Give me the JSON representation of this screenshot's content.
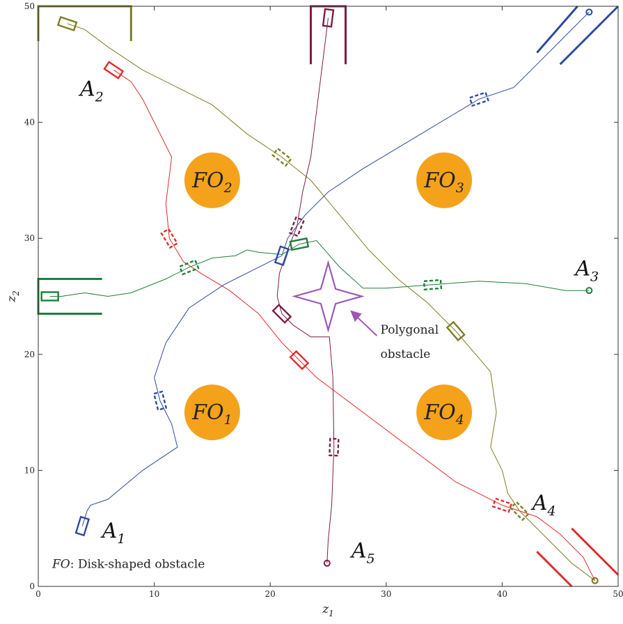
{
  "chart_data": {
    "type": "line",
    "xlabel": "z",
    "xlabel_sub": "1",
    "ylabel": "z",
    "ylabel_sub": "2",
    "xlim": [
      0,
      50
    ],
    "ylim": [
      0,
      50
    ],
    "xticks": [
      "0",
      "10",
      "20",
      "30",
      "40",
      "50"
    ],
    "yticks": [
      "0",
      "10",
      "20",
      "30",
      "40",
      "50"
    ],
    "grid": false,
    "obstacles": {
      "disks": [
        {
          "label": "FO",
          "sub": "1",
          "center": [
            15,
            15
          ],
          "radius": 2.4,
          "color": "#f5a21b"
        },
        {
          "label": "FO",
          "sub": "2",
          "center": [
            15,
            35
          ],
          "radius": 2.4,
          "color": "#f5a21b"
        },
        {
          "label": "FO",
          "sub": "3",
          "center": [
            35,
            35
          ],
          "radius": 2.4,
          "color": "#f5a21b"
        },
        {
          "label": "FO",
          "sub": "4",
          "center": [
            35,
            15
          ],
          "radius": 2.4,
          "color": "#f5a21b"
        }
      ],
      "polygon": {
        "label_line1": "Polygonal",
        "label_line2": "obstacle",
        "center": [
          25,
          25
        ],
        "color": "#9b59b6"
      },
      "legend_prefix": "FO",
      "legend_text": ": Disk-shaped obstacle"
    },
    "series": [
      {
        "name": "A",
        "sub": "1",
        "color": "#2e4a9e",
        "label_at": [
          5.5,
          4.2
        ],
        "x": [
          3.8,
          4.2,
          4.5,
          6,
          9,
          12,
          11.5,
          10.5,
          10,
          11,
          13,
          16,
          19,
          21,
          21.5,
          23,
          25,
          28,
          33,
          38,
          41,
          43,
          45,
          47.5
        ],
        "y": [
          5.2,
          6.5,
          7,
          7.5,
          10,
          12,
          14,
          16,
          18,
          21,
          24,
          26,
          27.5,
          28.5,
          30,
          32,
          34,
          36,
          39,
          42,
          43,
          45,
          47,
          49.5
        ]
      },
      {
        "name": "A",
        "sub": "2",
        "color": "#e02b2b",
        "label_at": [
          3.6,
          42.3
        ],
        "x": [
          6.5,
          8,
          9,
          10,
          11.5,
          11,
          11.3,
          12.5,
          14,
          16.5,
          19,
          21,
          22.5,
          24,
          28,
          32,
          36,
          40,
          43,
          45,
          47,
          48
        ],
        "y": [
          44.5,
          43.5,
          42,
          40,
          37,
          33,
          30,
          28,
          27,
          25.5,
          23.5,
          21,
          19.5,
          18,
          15,
          12,
          9,
          7,
          6,
          4.5,
          2.5,
          0.5
        ]
      },
      {
        "name": "A",
        "sub": "3",
        "color": "#1f7d3a",
        "label_at": [
          46.3,
          26.8
        ],
        "x": [
          1,
          2,
          4,
          6,
          8,
          11,
          13,
          15,
          17,
          18,
          19,
          21,
          22.5,
          24,
          26,
          28,
          30,
          34,
          38,
          42,
          45.5,
          47.5
        ],
        "y": [
          25,
          25,
          25.3,
          25,
          25.3,
          26.5,
          27.5,
          28.3,
          28.5,
          29,
          28.8,
          28.6,
          29.5,
          29.8,
          27.5,
          25.7,
          25.7,
          26,
          26.3,
          26.1,
          25.5,
          25.5
        ]
      },
      {
        "name": "A",
        "sub": "4",
        "color": "#7d7d25",
        "label_at": [
          42.6,
          6.6
        ],
        "x": [
          2.5,
          4,
          6,
          9,
          12,
          15,
          18,
          21,
          23.5,
          26,
          28.5,
          31,
          33.5,
          36,
          39,
          39.5,
          39,
          40,
          40.5,
          41.5,
          42.5,
          44,
          46,
          48
        ],
        "y": [
          48.5,
          48,
          46.5,
          44.5,
          43,
          41.5,
          39,
          37,
          35,
          32,
          29,
          26.5,
          24.5,
          22,
          18.5,
          15,
          12,
          10,
          8,
          6.5,
          5.5,
          4,
          2,
          0.5
        ]
      },
      {
        "name": "A",
        "sub": "5",
        "color": "#7d1d45",
        "label_at": [
          27,
          2.5
        ],
        "x": [
          25,
          24.5,
          24,
          23.5,
          22.8,
          22.3,
          21.5,
          20.8,
          20.6,
          21,
          22,
          23.5,
          25.1,
          25.4,
          25.5,
          25.3,
          25,
          24.9
        ],
        "y": [
          49,
          45,
          41,
          37,
          34,
          31,
          29,
          27,
          25,
          23.5,
          22.5,
          21.5,
          21.5,
          18,
          12,
          7,
          4,
          2
        ]
      }
    ]
  }
}
